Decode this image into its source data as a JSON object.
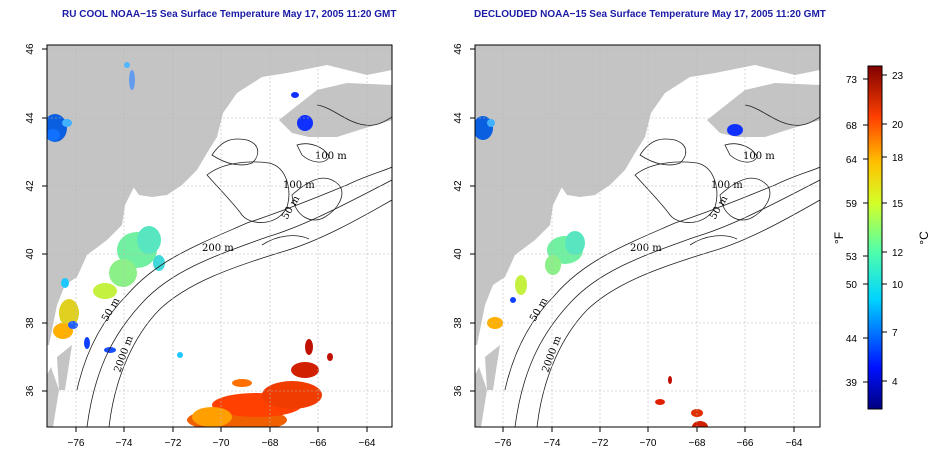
{
  "titles": {
    "left": "RU COOL NOAA−15 Sea Surface Temperature May 17, 2005 11:20 GMT",
    "right": "DECLOUDED NOAA−15 Sea Surface Temperature May 17, 2005 11:20 GMT"
  },
  "axes": {
    "lon_ticks_left": [
      "−76",
      "−74",
      "−72",
      "−70",
      "−68",
      "−66",
      "−64"
    ],
    "lon_ticks_right": [
      "−76",
      "−74",
      "−72",
      "−70",
      "−68",
      "−66",
      "−64"
    ],
    "lat_ticks": [
      "36",
      "38",
      "40",
      "42",
      "44",
      "46"
    ]
  },
  "contour_labels_left": [
    "100 m",
    "100 m",
    "50 m",
    "200 m",
    "50 m",
    "2000 m"
  ],
  "contour_labels_right": [
    "100 m",
    "100 m",
    "50 m",
    "200 m",
    "50 m",
    "2000 m"
  ],
  "colorbar": {
    "fahrenheit_ticks": [
      "73",
      "68",
      "64",
      "59",
      "53",
      "50",
      "44",
      "39"
    ],
    "celsius_ticks": [
      "23",
      "20",
      "18",
      "15",
      "12",
      "10",
      "7",
      "4"
    ],
    "fahrenheit_unit": "°F",
    "celsius_unit": "°C"
  },
  "colors": {
    "land": "#c4c4c4",
    "ocean": "#ffffff",
    "title": "#1a1aa6",
    "grid": "#b8b8b8"
  }
}
